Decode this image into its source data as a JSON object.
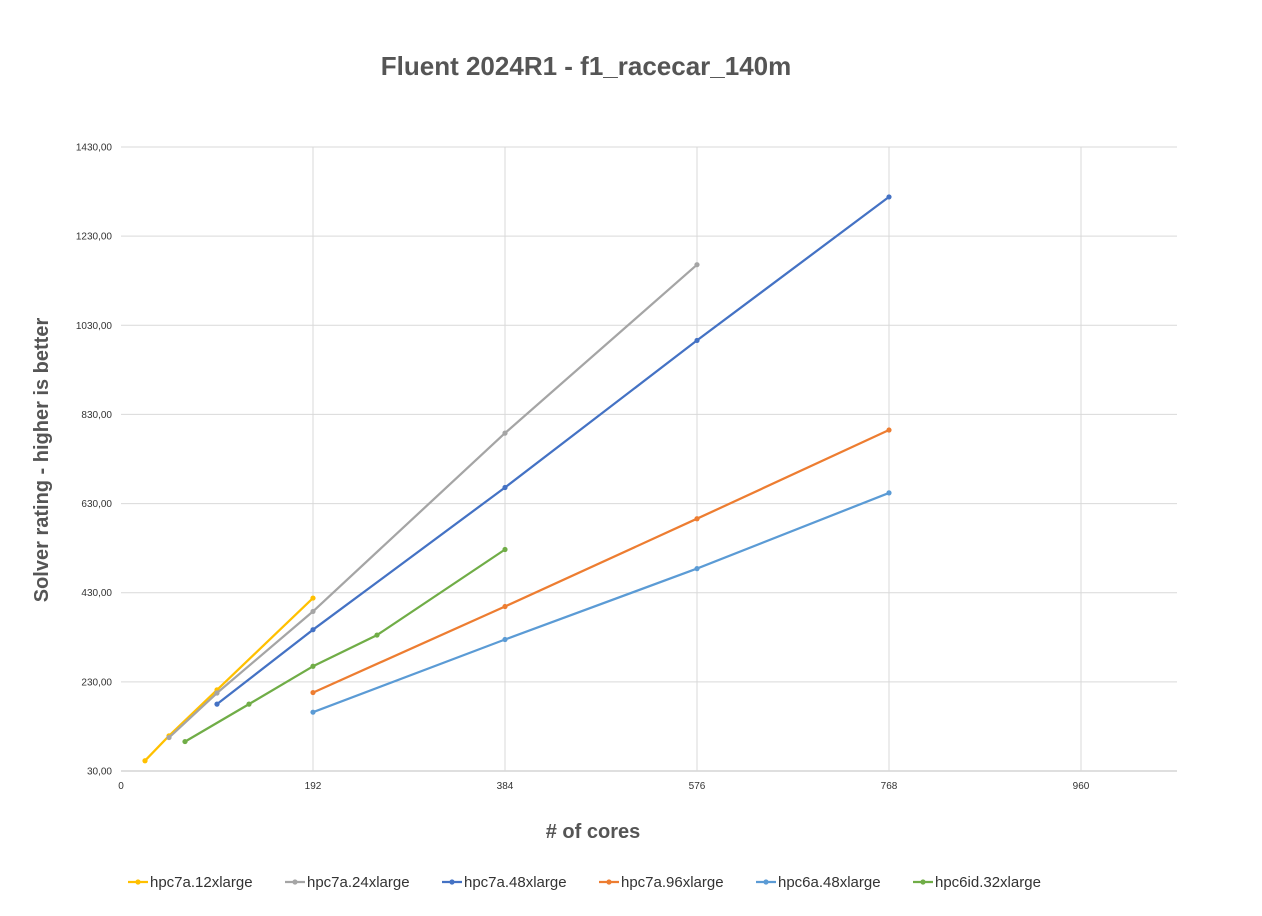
{
  "chart_data": {
    "type": "scatter",
    "title": "Fluent 2024R1 - f1_racecar_140m",
    "xlabel": "# of cores",
    "ylabel": "Solver rating - higher is better",
    "xlim": [
      0,
      1056
    ],
    "ylim": [
      30,
      1430
    ],
    "x_ticks": [
      0,
      192,
      384,
      576,
      768,
      960
    ],
    "x_tick_labels": [
      "0",
      "192",
      "384",
      "576",
      "768",
      "960"
    ],
    "y_ticks": [
      30,
      230,
      430,
      630,
      830,
      1030,
      1230,
      1430
    ],
    "y_tick_labels": [
      "30,00",
      "230,00",
      "430,00",
      "630,00",
      "830,00",
      "1030,00",
      "1230,00",
      "1430,00"
    ],
    "grid": true,
    "legend_position": "bottom",
    "markers": true,
    "series": [
      {
        "name": "hpc7a.12xlarge",
        "color": "#FFC000",
        "x": [
          24,
          48,
          96,
          192
        ],
        "y": [
          53,
          109,
          212,
          418
        ]
      },
      {
        "name": "hpc7a.24xlarge",
        "color": "#A5A5A5",
        "x": [
          48,
          96,
          192,
          384,
          576
        ],
        "y": [
          105,
          205,
          388,
          788,
          1166
        ]
      },
      {
        "name": "hpc7a.48xlarge",
        "color": "#4472C4",
        "x": [
          96,
          192,
          384,
          576,
          768
        ],
        "y": [
          180,
          347,
          666,
          996,
          1318
        ]
      },
      {
        "name": "hpc7a.96xlarge",
        "color": "#ED7D31",
        "x": [
          192,
          384,
          576,
          768
        ],
        "y": [
          206,
          399,
          596,
          795
        ]
      },
      {
        "name": "hpc6a.48xlarge",
        "color": "#5B9BD5",
        "x": [
          192,
          384,
          576,
          768
        ],
        "y": [
          162,
          325,
          484,
          654
        ]
      },
      {
        "name": "hpc6id.32xlarge",
        "color": "#70AD47",
        "x": [
          64,
          128,
          192,
          256,
          384
        ],
        "y": [
          96,
          180,
          265,
          335,
          527
        ]
      }
    ]
  }
}
